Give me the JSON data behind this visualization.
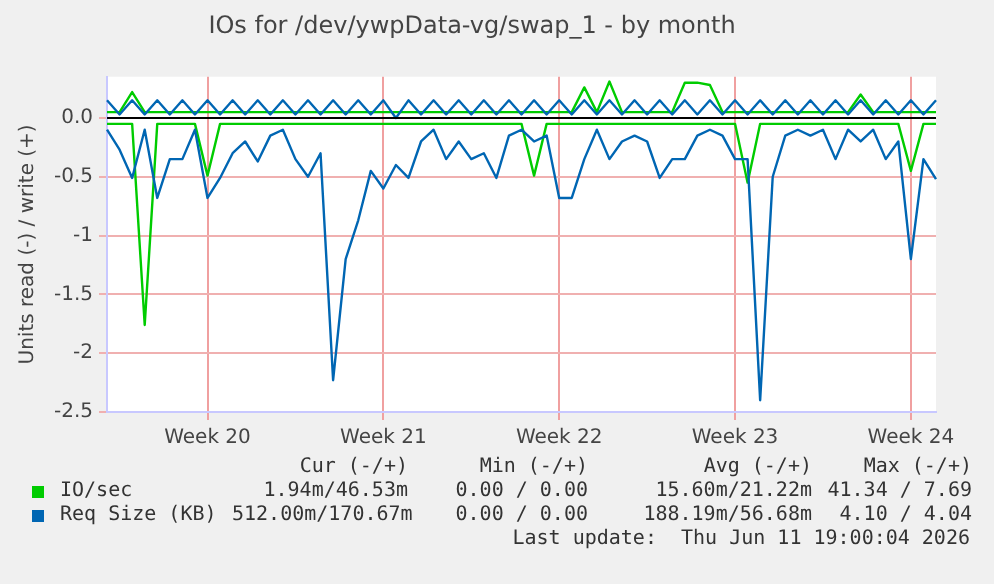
{
  "chart_data": {
    "type": "line",
    "title": "IOs for /dev/ywpData-vg/swap_1 - by month",
    "ylabel": "Units read (-) / write (+)",
    "categories": [
      null,
      null,
      null,
      null,
      null,
      null,
      null,
      null,
      "Week 20",
      null,
      null,
      null,
      null,
      null,
      null,
      null,
      null,
      null,
      null,
      null,
      null,
      null,
      "Week 21",
      null,
      null,
      null,
      null,
      null,
      null,
      null,
      null,
      null,
      null,
      null,
      null,
      null,
      "Week 22",
      null,
      null,
      null,
      null,
      null,
      null,
      null,
      null,
      null,
      null,
      null,
      null,
      null,
      "Week 23",
      null,
      null,
      null,
      null,
      null,
      null,
      null,
      null,
      null,
      null,
      null,
      null,
      null,
      "Week 24",
      null,
      null
    ],
    "ylim": [
      -2.5,
      0.35
    ],
    "yticks": [
      -2.5,
      -2,
      -1.5,
      -1,
      -0.5,
      {
        "value": 0,
        "label": "0.0"
      }
    ],
    "grid": true,
    "legend": "bottom",
    "marker": "none",
    "line_style": "solid",
    "series": [
      {
        "name": "IO/sec",
        "color": "#00cc00",
        "values": [
          0.05,
          0.05,
          0.22,
          0.05,
          0.05,
          0.05,
          0.05,
          0.05,
          0.05,
          0.05,
          0.05,
          0.05,
          0.05,
          0.05,
          0.05,
          0.05,
          0.05,
          0.05,
          0.05,
          0.05,
          0.05,
          0.05,
          0.05,
          0.05,
          0.05,
          0.05,
          0.05,
          0.05,
          0.05,
          0.05,
          0.05,
          0.05,
          0.05,
          0.05,
          0.05,
          0.05,
          0.05,
          0.05,
          0.26,
          0.05,
          0.31,
          0.05,
          0.05,
          0.05,
          0.05,
          0.05,
          0.3,
          0.3,
          0.28,
          0.05,
          0.05,
          0.05,
          0.05,
          0.05,
          0.05,
          0.05,
          0.05,
          0.05,
          0.05,
          0.05,
          0.2,
          0.05,
          0.05,
          0.05,
          0.05,
          0.05,
          0.05
        ]
      },
      {
        "color": "#00cc00",
        "values": [
          -0.05,
          -0.05,
          -0.05,
          -1.76,
          -0.05,
          -0.05,
          -0.05,
          -0.05,
          -0.49,
          -0.05,
          -0.05,
          -0.05,
          -0.05,
          -0.05,
          -0.05,
          -0.05,
          -0.05,
          -0.05,
          -0.05,
          -0.05,
          -0.05,
          -0.05,
          -0.05,
          -0.05,
          -0.05,
          -0.05,
          -0.05,
          -0.05,
          -0.05,
          -0.05,
          -0.05,
          -0.05,
          -0.05,
          -0.05,
          -0.49,
          -0.05,
          -0.05,
          -0.05,
          -0.05,
          -0.05,
          -0.05,
          -0.05,
          -0.05,
          -0.05,
          -0.05,
          -0.05,
          -0.05,
          -0.05,
          -0.05,
          -0.05,
          -0.05,
          -0.55,
          -0.05,
          -0.05,
          -0.05,
          -0.05,
          -0.05,
          -0.05,
          -0.05,
          -0.05,
          -0.05,
          -0.05,
          -0.05,
          -0.05,
          -0.45,
          -0.05,
          -0.05
        ]
      },
      {
        "name": "Req Size (KB)",
        "color": "#0066b3",
        "values": [
          0.15,
          0.03,
          0.15,
          0.03,
          0.15,
          0.03,
          0.15,
          0.03,
          0.15,
          0.03,
          0.15,
          0.03,
          0.15,
          0.03,
          0.15,
          0.03,
          0.15,
          0.03,
          0.15,
          0.03,
          0.15,
          0.03,
          0.15,
          0,
          0.15,
          0.03,
          0.15,
          0.03,
          0.15,
          0.03,
          0.15,
          0.03,
          0.15,
          0.03,
          0.15,
          0.03,
          0.15,
          0.03,
          0.15,
          0.03,
          0.15,
          0.03,
          0.15,
          0.03,
          0.15,
          0.03,
          0.15,
          0.03,
          0.15,
          0.03,
          0.15,
          0.03,
          0.15,
          0.03,
          0.15,
          0.03,
          0.15,
          0.03,
          0.15,
          0.03,
          0.15,
          0.03,
          0.15,
          0.03,
          0.15,
          0.03,
          0.15
        ]
      },
      {
        "color": "#0066b3",
        "values": [
          -0.1,
          -0.27,
          -0.51,
          -0.1,
          -0.68,
          -0.35,
          -0.35,
          -0.1,
          -0.68,
          -0.51,
          -0.3,
          -0.2,
          -0.37,
          -0.15,
          -0.1,
          -0.35,
          -0.5,
          -0.3,
          -2.23,
          -1.2,
          -0.87,
          -0.45,
          -0.6,
          -0.4,
          -0.51,
          -0.2,
          -0.1,
          -0.35,
          -0.2,
          -0.35,
          -0.3,
          -0.51,
          -0.15,
          -0.1,
          -0.2,
          -0.15,
          -0.68,
          -0.68,
          -0.35,
          -0.1,
          -0.35,
          -0.2,
          -0.15,
          -0.2,
          -0.51,
          -0.35,
          -0.35,
          -0.15,
          -0.1,
          -0.15,
          -0.35,
          -0.35,
          -2.4,
          -0.5,
          -0.15,
          -0.1,
          -0.15,
          -0.1,
          -0.35,
          -0.1,
          -0.2,
          -0.1,
          -0.35,
          -0.2,
          -1.2,
          -0.35,
          -0.52
        ]
      }
    ],
    "annotations": [
      "Cur (-/+)",
      "Min (-/+)",
      "Avg (-/+)",
      "Max (-/+)",
      "1.94m/46.53m",
      "0.00 / 0.00",
      "15.60m/21.22m",
      "41.34 / 7.69",
      "512.00m/170.67m",
      "0.00 / 0.00",
      "188.19m/56.68m",
      "4.10 / 4.04",
      "Last update:  Thu Jun 11 19:00:04 2026"
    ]
  }
}
